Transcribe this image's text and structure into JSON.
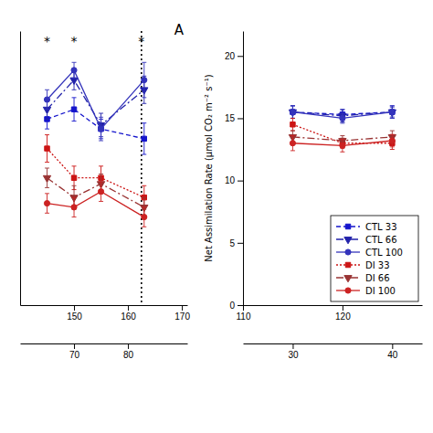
{
  "chart_data": [
    {
      "type": "line",
      "title": "A",
      "x": [
        145,
        150,
        155,
        163
      ],
      "series": [
        {
          "color": "#1414CC",
          "marker": "square",
          "line_style": "dashed",
          "values": [
            17.5,
            18.0,
            17.0,
            16.5
          ],
          "errors": [
            0.5,
            0.6,
            0.5,
            0.8
          ]
        },
        {
          "color": "#2222AA",
          "marker": "triangle-down",
          "line_style": "dashdot",
          "values": [
            18.0,
            19.5,
            17.2,
            19.0
          ],
          "errors": [
            0.5,
            0.5,
            0.6,
            0.7
          ]
        },
        {
          "color": "#3333BB",
          "marker": "circle",
          "line_style": "solid",
          "values": [
            18.5,
            20.0,
            17.0,
            19.5
          ],
          "errors": [
            0.5,
            0.4,
            0.6,
            0.9
          ]
        },
        {
          "color": "#CC1414",
          "marker": "square",
          "line_style": "dotted",
          "values": [
            16.0,
            14.5,
            14.5,
            13.5
          ],
          "errors": [
            0.7,
            0.6,
            0.6,
            0.6
          ]
        },
        {
          "color": "#993333",
          "marker": "triangle-down",
          "line_style": "dashdot",
          "values": [
            14.5,
            13.5,
            14.2,
            13.0
          ],
          "errors": [
            0.5,
            0.6,
            0.5,
            0.5
          ]
        },
        {
          "color": "#CC2222",
          "marker": "circle",
          "line_style": "solid",
          "values": [
            13.2,
            13.0,
            13.8,
            12.5
          ],
          "errors": [
            0.5,
            0.5,
            0.5,
            0.5
          ]
        }
      ],
      "xlim": [
        140,
        171
      ],
      "ylim": [
        8,
        22
      ],
      "xticks": [
        150,
        160,
        170
      ],
      "x2lim": [
        140,
        171
      ],
      "x2ticks": [
        {
          "value": 150,
          "label": "70"
        },
        {
          "value": 160,
          "label": "80"
        }
      ],
      "tick_labels": "x",
      "vlines": [
        162.5
      ],
      "annotations": [
        {
          "text": "*",
          "x": 145,
          "y": 21.5
        },
        {
          "text": "*",
          "x": 150,
          "y": 21.5
        },
        {
          "text": "*",
          "x": 162.5,
          "y": 21.5
        }
      ]
    },
    {
      "type": "line",
      "ylabel": "Net Assimilation Rate (μmol CO₂ m⁻² s⁻¹)",
      "x": [
        115,
        120,
        125
      ],
      "series": [
        {
          "name": "CTL 33",
          "color": "#1414CC",
          "marker": "square",
          "line_style": "dashed",
          "values": [
            15.5,
            15.3,
            15.5
          ],
          "errors": [
            0.5,
            0.4,
            0.5
          ]
        },
        {
          "name": "CTL 66",
          "color": "#2222AA",
          "marker": "triangle-down",
          "line_style": "dashdot",
          "values": [
            15.5,
            15.2,
            15.5
          ],
          "errors": [
            0.5,
            0.5,
            0.4
          ]
        },
        {
          "name": "CTL 100",
          "color": "#3333BB",
          "marker": "circle",
          "line_style": "solid",
          "values": [
            15.5,
            15.0,
            15.5
          ],
          "errors": [
            0.5,
            0.4,
            0.5
          ]
        },
        {
          "name": "DI 33",
          "color": "#CC1414",
          "marker": "square",
          "line_style": "dotted",
          "values": [
            14.5,
            13.0,
            13.0
          ],
          "errors": [
            0.5,
            0.4,
            0.5
          ]
        },
        {
          "name": "DI 66",
          "color": "#993333",
          "marker": "triangle-down",
          "line_style": "dashdot",
          "values": [
            13.5,
            13.2,
            13.5
          ],
          "errors": [
            0.5,
            0.4,
            0.5
          ]
        },
        {
          "name": "DI 100",
          "color": "#CC2222",
          "marker": "circle",
          "line_style": "solid",
          "values": [
            13.0,
            12.8,
            13.2
          ],
          "errors": [
            0.6,
            0.5,
            0.5
          ]
        }
      ],
      "xlim": [
        110,
        128
      ],
      "ylim": [
        0,
        22
      ],
      "xticks": [
        110,
        120
      ],
      "yticks": [
        0,
        5,
        10,
        15,
        20
      ],
      "x2lim": [
        110,
        128
      ],
      "x2ticks": [
        {
          "value": 115,
          "label": "30"
        },
        {
          "value": 125,
          "label": "40"
        }
      ],
      "legend": "lower right"
    }
  ]
}
